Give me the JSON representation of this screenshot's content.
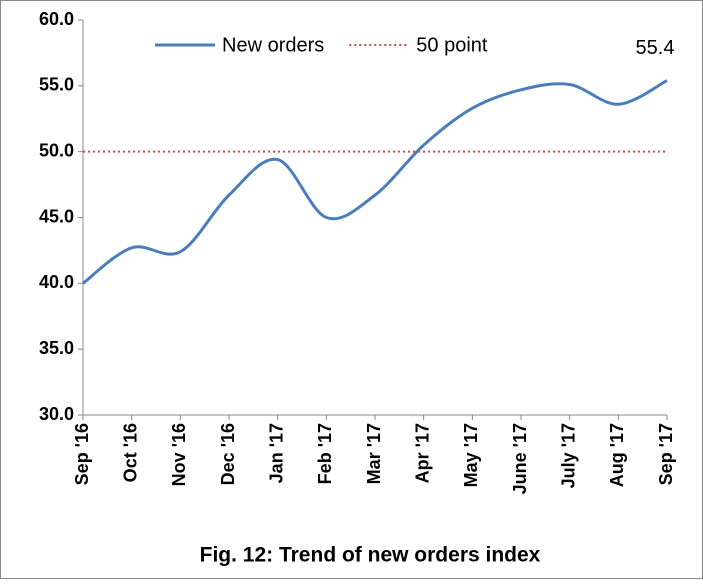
{
  "chart_data": {
    "type": "line",
    "title": "Fig. 12: Trend of  new orders index",
    "categories": [
      "Sep '16",
      "Oct '16",
      "Nov '16",
      "Dec '16",
      "Jan '17",
      "Feb '17",
      "Mar '17",
      "Apr '17",
      "May '17",
      "June '17",
      "July '17",
      "Aug '17",
      "Sep '17"
    ],
    "series": [
      {
        "name": "New orders",
        "color": "#4a7ebb",
        "smooth": true,
        "values": [
          40.0,
          42.7,
          42.4,
          46.7,
          49.4,
          45.0,
          46.7,
          50.5,
          53.3,
          54.7,
          55.1,
          53.6,
          55.4
        ],
        "value_labels": [
          null,
          null,
          null,
          null,
          null,
          null,
          null,
          null,
          null,
          null,
          null,
          null,
          "55.4"
        ]
      },
      {
        "name": "50 point",
        "color": "#c0504d",
        "dash": "dotted",
        "values": [
          50,
          50,
          50,
          50,
          50,
          50,
          50,
          50,
          50,
          50,
          50,
          50,
          50
        ]
      }
    ],
    "ylim": [
      30,
      60
    ],
    "yticks": [
      {
        "value": 30,
        "label": "30.0"
      },
      {
        "value": 35,
        "label": "35.0"
      },
      {
        "value": 40,
        "label": "40.0"
      },
      {
        "value": 45,
        "label": "45.0"
      },
      {
        "value": 50,
        "label": "50.0"
      },
      {
        "value": 55,
        "label": "55.0"
      },
      {
        "value": 60,
        "label": "60.0"
      }
    ],
    "grid": false,
    "legend": "top"
  }
}
